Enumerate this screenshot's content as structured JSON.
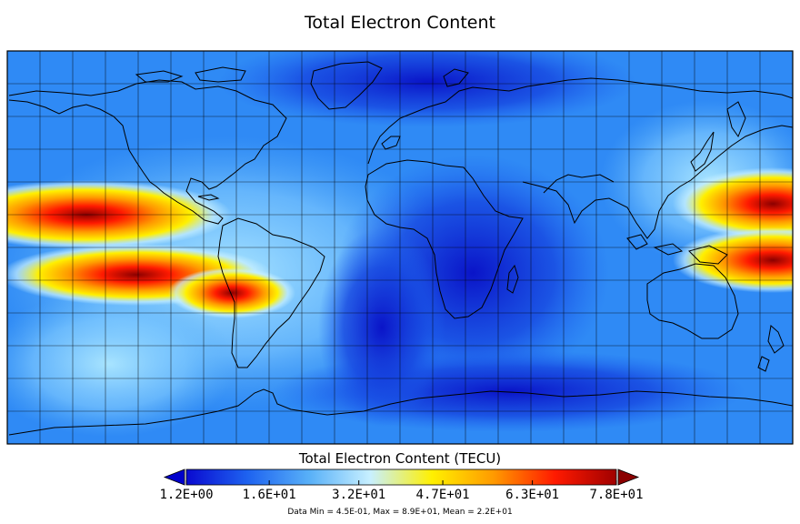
{
  "title": "Total Electron Content",
  "colorbar": {
    "title": "Total Electron Content (TECU)",
    "min": 1.2,
    "max": 78,
    "ticks": [
      {
        "value": 1.2,
        "label": "1.2E+00"
      },
      {
        "value": 16,
        "label": "1.6E+01"
      },
      {
        "value": 32,
        "label": "3.2E+01"
      },
      {
        "value": 47,
        "label": "4.7E+01"
      },
      {
        "value": 63,
        "label": "6.3E+01"
      },
      {
        "value": 78,
        "label": "7.8E+01"
      }
    ],
    "colors": [
      "#0a0ad0",
      "#1e63f0",
      "#58b0f8",
      "#c8f0ff",
      "#fff000",
      "#ff9a00",
      "#ff1a00",
      "#a00000"
    ],
    "under_color": "#0000cc",
    "over_color": "#8b0000"
  },
  "stats_text": "Data Min = 4.5E-01, Max = 8.9E+01, Mean = 2.2E+01",
  "map": {
    "projection": "cylindrical equidistant",
    "lon_range": [
      -180,
      180
    ],
    "lat_range": [
      -90,
      90
    ],
    "grid_spacing_deg": 15
  }
}
